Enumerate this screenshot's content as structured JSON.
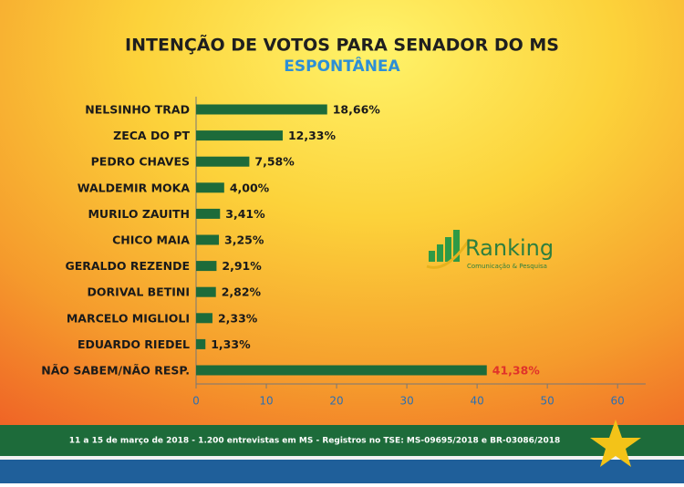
{
  "chart_data": {
    "type": "bar",
    "orientation": "horizontal",
    "title": "INTENÇÃO DE VOTOS PARA SENADOR DO MS",
    "subtitle": "ESPONTÂNEA",
    "categories": [
      "NELSINHO TRAD",
      "ZECA DO PT",
      "PEDRO CHAVES",
      "WALDEMIR MOKA",
      "MURILO ZAUITH",
      "CHICO MAIA",
      "GERALDO REZENDE",
      "DORIVAL BETINI",
      "MARCELO MIGLIOLI",
      "EDUARDO RIEDEL",
      "NÃO SABEM/NÃO RESP."
    ],
    "values": [
      18.66,
      12.33,
      7.58,
      4.0,
      3.41,
      3.25,
      2.91,
      2.82,
      2.33,
      1.33,
      41.38
    ],
    "value_labels": [
      "18,66%",
      "12,33%",
      "7,58%",
      "4,00%",
      "3,41%",
      "3,25%",
      "2,91%",
      "2,82%",
      "2,33%",
      "1,33%",
      "41,38%"
    ],
    "value_label_colors": [
      "#1a1a1a",
      "#1a1a1a",
      "#1a1a1a",
      "#1a1a1a",
      "#1a1a1a",
      "#1a1a1a",
      "#1a1a1a",
      "#1a1a1a",
      "#1a1a1a",
      "#1a1a1a",
      "#e0322a"
    ],
    "color": "#1d6b3a",
    "xlim": [
      0,
      64
    ],
    "xticks": [
      0,
      10,
      20,
      30,
      40,
      50,
      60
    ]
  },
  "logo": {
    "name": "Ranking",
    "tagline": "Comunicação & Pesquisa"
  },
  "footer": "11 a 15 de março de 2018 - 1.200 entrevistas em MS - Registros no TSE: MS-09695/2018 e BR-03086/2018"
}
